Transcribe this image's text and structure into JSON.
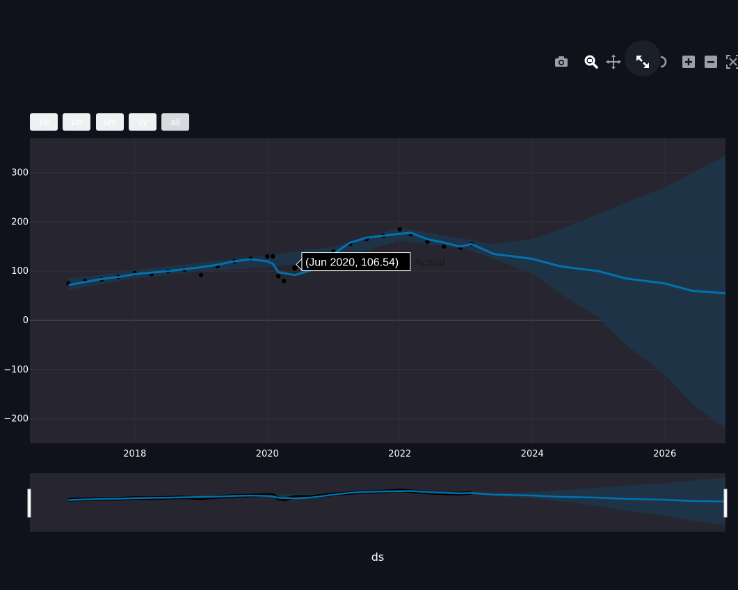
{
  "toolbar": {
    "buttons": [
      {
        "icon": "camera-icon",
        "label": "Download plot as a png"
      },
      {
        "icon": "zoom-icon",
        "label": "Zoom"
      },
      {
        "icon": "pan-icon",
        "label": "Pan"
      },
      {
        "icon": "autoscale-icon",
        "label": "Autoscale"
      },
      {
        "icon": "reset-axes-icon",
        "label": "Reset axes"
      },
      {
        "icon": "zoom-in-icon",
        "label": "Zoom in"
      },
      {
        "icon": "zoom-out-icon",
        "label": "Zoom out"
      },
      {
        "icon": "fullscreen-icon",
        "label": "Full screen"
      }
    ]
  },
  "range_selector": {
    "buttons": [
      "1w",
      "1m",
      "6m",
      "1y",
      "all"
    ],
    "active": "all"
  },
  "hover": {
    "label": "(Jun 2020, 106.54)",
    "series_name": "Actual"
  },
  "colors": {
    "background": "#0f121a",
    "plot_bg": "#272630",
    "forecast_line": "#0072b2",
    "uncertainty_band": "#1f3449",
    "actual_points": "#000000"
  },
  "chart_data": {
    "type": "line",
    "xlabel": "ds",
    "ylabel": "",
    "xlim": [
      "2016-06-01",
      "2026-12-01"
    ],
    "ylim": [
      -250,
      370
    ],
    "x_ticks": [
      "2018",
      "2020",
      "2022",
      "2024",
      "2026"
    ],
    "y_ticks": [
      -200,
      -100,
      0,
      100,
      200,
      300
    ],
    "grid": true,
    "legend": "none",
    "rangeslider": true,
    "series": [
      {
        "name": "Actual",
        "style": "markers",
        "x": [
          "2017-01",
          "2017-04",
          "2017-07",
          "2017-10",
          "2018-01",
          "2018-04",
          "2018-07",
          "2018-10",
          "2019-01",
          "2019-04",
          "2019-07",
          "2019-10",
          "2020-01",
          "2020-02",
          "2020-03",
          "2020-04",
          "2020-06",
          "2020-09",
          "2021-01",
          "2021-04",
          "2021-07",
          "2021-10",
          "2022-01",
          "2022-03",
          "2022-06",
          "2022-09",
          "2022-12",
          "2023-02"
        ],
        "values": [
          75,
          80,
          83,
          88,
          96,
          94,
          100,
          103,
          92,
          110,
          120,
          125,
          130,
          130,
          90,
          80,
          106.54,
          110,
          140,
          155,
          165,
          172,
          185,
          175,
          160,
          150,
          148,
          155
        ]
      },
      {
        "name": "",
        "style": "line",
        "x": [
          "2017-01",
          "2017-04",
          "2017-07",
          "2017-10",
          "2018-01",
          "2018-04",
          "2018-07",
          "2018-10",
          "2019-01",
          "2019-04",
          "2019-07",
          "2019-10",
          "2020-01",
          "2020-02",
          "2020-03",
          "2020-06",
          "2020-09",
          "2021-01",
          "2021-04",
          "2021-07",
          "2021-10",
          "2022-01",
          "2022-03",
          "2022-06",
          "2022-09",
          "2022-12",
          "2023-02",
          "2023-06",
          "2024-01",
          "2024-06",
          "2025-01",
          "2025-06",
          "2026-01",
          "2026-06",
          "2026-12"
        ],
        "values": [
          72,
          78,
          84,
          88,
          94,
          97,
          100,
          104,
          108,
          113,
          120,
          124,
          120,
          115,
          98,
          92,
          102,
          135,
          158,
          168,
          172,
          176,
          178,
          165,
          158,
          150,
          155,
          135,
          125,
          110,
          100,
          85,
          75,
          60,
          55
        ]
      }
    ],
    "band": {
      "x": [
        "2017-01",
        "2018-01",
        "2019-01",
        "2020-01",
        "2021-01",
        "2022-01",
        "2023-01",
        "2023-06",
        "2024-01",
        "2024-06",
        "2025-01",
        "2025-06",
        "2026-01",
        "2026-06",
        "2026-12"
      ],
      "upper": [
        85,
        102,
        118,
        132,
        150,
        188,
        165,
        155,
        165,
        185,
        215,
        240,
        270,
        300,
        335
      ],
      "lower": [
        62,
        85,
        100,
        108,
        122,
        162,
        145,
        125,
        95,
        55,
        5,
        -50,
        -110,
        -170,
        -220
      ]
    }
  }
}
